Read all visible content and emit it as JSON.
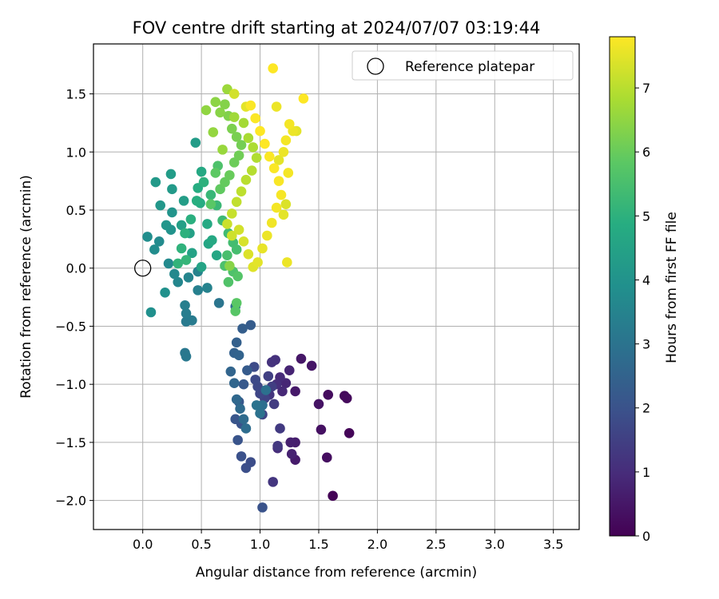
{
  "chart_data": {
    "type": "scatter",
    "title": "FOV centre drift starting at 2024/07/07 03:19:44",
    "xlabel": "Angular distance from reference (arcmin)",
    "ylabel": "Rotation from reference (arcmin)",
    "xlim": [
      -0.42,
      3.72
    ],
    "ylim": [
      -2.25,
      1.93
    ],
    "xticks": [
      0.0,
      0.5,
      1.0,
      1.5,
      2.0,
      2.5,
      3.0,
      3.5
    ],
    "xtick_labels": [
      "0.0",
      "0.5",
      "1.0",
      "1.5",
      "2.0",
      "2.5",
      "3.0",
      "3.5"
    ],
    "yticks": [
      -2.0,
      -1.5,
      -1.0,
      -0.5,
      0.0,
      0.5,
      1.0,
      1.5
    ],
    "ytick_labels": [
      "−2.0",
      "−1.5",
      "−1.0",
      "−0.5",
      "0.0",
      "0.5",
      "1.0",
      "1.5"
    ],
    "grid": true,
    "legend": {
      "placement": "top-right",
      "entries": [
        "Reference platepar"
      ]
    },
    "reference_point": {
      "x": 0.0,
      "y": 0.0,
      "label": "Reference platepar"
    },
    "colorbar": {
      "label": "Hours from first FF file",
      "colormap": "viridis",
      "range": [
        0,
        7.8
      ],
      "ticks": [
        0,
        1,
        2,
        3,
        4,
        5,
        6,
        7
      ],
      "tick_labels": [
        "0",
        "1",
        "2",
        "3",
        "4",
        "5",
        "6",
        "7"
      ]
    },
    "points": [
      [
        1.62,
        -1.96,
        0.05
      ],
      [
        1.76,
        -1.42,
        0.1
      ],
      [
        1.72,
        -1.1,
        0.15
      ],
      [
        1.74,
        -1.12,
        0.2
      ],
      [
        1.58,
        -1.09,
        0.25
      ],
      [
        1.57,
        -1.63,
        0.3
      ],
      [
        1.52,
        -1.39,
        0.35
      ],
      [
        1.5,
        -1.17,
        0.4
      ],
      [
        1.44,
        -0.84,
        0.45
      ],
      [
        1.35,
        -0.78,
        0.5
      ],
      [
        1.3,
        -1.06,
        0.55
      ],
      [
        1.3,
        -1.65,
        0.6
      ],
      [
        1.3,
        -1.5,
        0.65
      ],
      [
        1.26,
        -1.5,
        0.7
      ],
      [
        1.27,
        -1.6,
        0.75
      ],
      [
        1.25,
        -0.88,
        0.8
      ],
      [
        1.22,
        -0.99,
        0.85
      ],
      [
        1.19,
        -1.06,
        0.9
      ],
      [
        1.17,
        -0.94,
        0.95
      ],
      [
        1.15,
        -1.55,
        1.0
      ],
      [
        1.14,
        -1.0,
        1.05
      ],
      [
        1.13,
        -0.79,
        1.1
      ],
      [
        1.1,
        -0.81,
        1.15
      ],
      [
        1.08,
        -1.09,
        1.2
      ],
      [
        1.11,
        -1.84,
        1.25
      ],
      [
        1.15,
        -1.53,
        1.3
      ],
      [
        1.17,
        -1.38,
        1.35
      ],
      [
        1.12,
        -1.17,
        1.4
      ],
      [
        1.1,
        -1.02,
        1.45
      ],
      [
        1.07,
        -0.93,
        1.5
      ],
      [
        1.04,
        -1.12,
        1.55
      ],
      [
        1.02,
        -1.26,
        1.6
      ],
      [
        1.0,
        -1.08,
        1.65
      ],
      [
        0.98,
        -1.02,
        1.7
      ],
      [
        0.96,
        -0.96,
        1.75
      ],
      [
        0.95,
        -0.85,
        1.8
      ],
      [
        0.92,
        -1.67,
        1.85
      ],
      [
        0.88,
        -1.72,
        1.9
      ],
      [
        0.84,
        -1.62,
        1.95
      ],
      [
        0.84,
        -1.34,
        2.0
      ],
      [
        0.81,
        -1.48,
        2.05
      ],
      [
        0.79,
        -1.3,
        2.1
      ],
      [
        0.82,
        -1.15,
        2.15
      ],
      [
        0.86,
        -1.0,
        2.2
      ],
      [
        0.89,
        -0.88,
        2.25
      ],
      [
        0.92,
        -0.49,
        2.3
      ],
      [
        0.85,
        -0.52,
        2.35
      ],
      [
        0.8,
        -0.64,
        2.4
      ],
      [
        0.78,
        -0.73,
        2.45
      ],
      [
        0.82,
        -0.75,
        2.5
      ],
      [
        0.75,
        -0.89,
        2.55
      ],
      [
        0.78,
        -0.99,
        2.6
      ],
      [
        0.8,
        -1.13,
        2.65
      ],
      [
        0.83,
        -1.21,
        2.7
      ],
      [
        0.86,
        -1.3,
        2.75
      ],
      [
        0.88,
        -1.38,
        2.8
      ],
      [
        1.02,
        -1.18,
        2.85
      ],
      [
        1.05,
        -1.05,
        2.9
      ],
      [
        1.0,
        -1.25,
        2.95
      ],
      [
        0.97,
        -1.18,
        3.0
      ],
      [
        1.02,
        -2.06,
        2.0
      ],
      [
        0.79,
        -0.33,
        2.8
      ],
      [
        0.65,
        -0.3,
        3.05
      ],
      [
        0.36,
        -0.73,
        3.1
      ],
      [
        0.37,
        -0.76,
        3.15
      ],
      [
        0.37,
        -0.46,
        3.2
      ],
      [
        0.42,
        -0.45,
        3.25
      ],
      [
        0.37,
        -0.39,
        3.3
      ],
      [
        0.36,
        -0.32,
        3.35
      ],
      [
        0.47,
        -0.19,
        3.4
      ],
      [
        0.55,
        -0.17,
        3.45
      ],
      [
        0.47,
        -0.03,
        3.5
      ],
      [
        0.39,
        -0.08,
        3.55
      ],
      [
        0.3,
        -0.12,
        3.6
      ],
      [
        0.27,
        -0.05,
        3.65
      ],
      [
        0.22,
        0.04,
        3.7
      ],
      [
        0.14,
        0.23,
        3.75
      ],
      [
        0.1,
        0.16,
        3.8
      ],
      [
        0.04,
        0.27,
        3.85
      ],
      [
        0.07,
        -0.38,
        3.9
      ],
      [
        0.19,
        -0.21,
        3.95
      ],
      [
        0.24,
        0.33,
        4.0
      ],
      [
        0.25,
        0.48,
        4.05
      ],
      [
        0.2,
        0.37,
        4.1
      ],
      [
        0.15,
        0.54,
        4.15
      ],
      [
        0.11,
        0.74,
        4.2
      ],
      [
        0.25,
        0.68,
        4.25
      ],
      [
        0.24,
        0.81,
        4.3
      ],
      [
        0.35,
        0.58,
        4.35
      ],
      [
        0.33,
        0.37,
        4.4
      ],
      [
        0.4,
        0.3,
        4.45
      ],
      [
        0.42,
        0.13,
        4.5
      ],
      [
        0.5,
        0.01,
        4.55
      ],
      [
        0.56,
        0.21,
        4.6
      ],
      [
        0.63,
        0.11,
        4.65
      ],
      [
        0.59,
        0.24,
        4.7
      ],
      [
        0.55,
        0.38,
        4.75
      ],
      [
        0.49,
        0.56,
        4.8
      ],
      [
        0.47,
        0.69,
        4.85
      ],
      [
        0.46,
        0.58,
        4.9
      ],
      [
        0.41,
        0.42,
        4.95
      ],
      [
        0.36,
        0.3,
        5.0
      ],
      [
        0.33,
        0.17,
        5.05
      ],
      [
        0.3,
        0.04,
        5.1
      ],
      [
        0.37,
        0.07,
        5.15
      ],
      [
        0.45,
        1.08,
        4.3
      ],
      [
        0.5,
        0.83,
        4.7
      ],
      [
        0.52,
        0.74,
        5.0
      ],
      [
        0.58,
        0.63,
        5.2
      ],
      [
        0.63,
        0.54,
        5.25
      ],
      [
        0.68,
        0.41,
        5.3
      ],
      [
        0.73,
        0.3,
        5.35
      ],
      [
        0.77,
        0.22,
        5.4
      ],
      [
        0.8,
        0.16,
        5.45
      ],
      [
        0.72,
        0.11,
        5.5
      ],
      [
        0.7,
        0.02,
        5.55
      ],
      [
        0.77,
        -0.03,
        5.6
      ],
      [
        0.73,
        -0.12,
        5.65
      ],
      [
        0.81,
        -0.07,
        5.7
      ],
      [
        0.79,
        -0.37,
        5.75
      ],
      [
        0.64,
        0.88,
        5.6
      ],
      [
        0.58,
        0.55,
        5.8
      ],
      [
        0.62,
        0.82,
        5.85
      ],
      [
        0.66,
        0.68,
        5.9
      ],
      [
        0.7,
        0.74,
        5.95
      ],
      [
        0.74,
        0.8,
        6.0
      ],
      [
        0.78,
        0.91,
        6.05
      ],
      [
        0.82,
        0.97,
        6.1
      ],
      [
        0.84,
        1.06,
        6.15
      ],
      [
        0.8,
        1.13,
        6.2
      ],
      [
        0.76,
        1.2,
        6.25
      ],
      [
        0.73,
        1.31,
        6.3
      ],
      [
        0.7,
        1.41,
        6.35
      ],
      [
        0.66,
        1.34,
        6.4
      ],
      [
        0.62,
        1.43,
        6.45
      ],
      [
        0.54,
        1.36,
        6.5
      ],
      [
        0.6,
        1.17,
        6.55
      ],
      [
        0.68,
        1.02,
        6.6
      ],
      [
        0.72,
        1.54,
        6.65
      ],
      [
        0.78,
        1.3,
        6.7
      ],
      [
        0.86,
        1.25,
        6.75
      ],
      [
        0.9,
        1.12,
        6.8
      ],
      [
        0.94,
        1.04,
        6.85
      ],
      [
        0.97,
        0.95,
        6.9
      ],
      [
        0.93,
        0.84,
        6.95
      ],
      [
        0.88,
        0.76,
        7.0
      ],
      [
        0.84,
        0.66,
        7.05
      ],
      [
        0.8,
        0.57,
        7.1
      ],
      [
        0.76,
        0.47,
        7.15
      ],
      [
        0.72,
        0.38,
        7.2
      ],
      [
        0.76,
        0.28,
        7.25
      ],
      [
        0.82,
        0.33,
        7.3
      ],
      [
        0.86,
        0.23,
        7.35
      ],
      [
        0.9,
        0.12,
        7.4
      ],
      [
        0.94,
        0.01,
        7.45
      ],
      [
        0.98,
        0.05,
        7.5
      ],
      [
        1.02,
        0.17,
        7.55
      ],
      [
        1.06,
        0.28,
        7.6
      ],
      [
        1.1,
        0.39,
        7.65
      ],
      [
        1.14,
        0.52,
        7.7
      ],
      [
        1.18,
        0.63,
        7.72
      ],
      [
        1.16,
        0.75,
        7.74
      ],
      [
        1.12,
        0.86,
        7.76
      ],
      [
        1.08,
        0.96,
        7.78
      ],
      [
        1.04,
        1.07,
        7.8
      ],
      [
        1.0,
        1.18,
        7.8
      ],
      [
        0.96,
        1.29,
        7.78
      ],
      [
        0.92,
        1.4,
        7.76
      ],
      [
        0.88,
        1.39,
        7.5
      ],
      [
        0.78,
        1.5,
        7.3
      ],
      [
        1.11,
        1.72,
        7.8
      ],
      [
        1.37,
        1.46,
        7.8
      ],
      [
        1.14,
        1.39,
        7.6
      ],
      [
        1.25,
        1.24,
        7.7
      ],
      [
        1.28,
        1.18,
        7.6
      ],
      [
        1.31,
        1.18,
        7.5
      ],
      [
        1.22,
        1.1,
        7.7
      ],
      [
        1.2,
        1.0,
        7.6
      ],
      [
        1.24,
        0.82,
        7.7
      ],
      [
        1.16,
        0.93,
        7.5
      ],
      [
        1.22,
        0.55,
        7.4
      ],
      [
        1.2,
        0.46,
        7.5
      ],
      [
        1.23,
        0.05,
        7.6
      ],
      [
        0.8,
        -0.3,
        5.8
      ],
      [
        0.74,
        0.02,
        6.4
      ]
    ]
  }
}
